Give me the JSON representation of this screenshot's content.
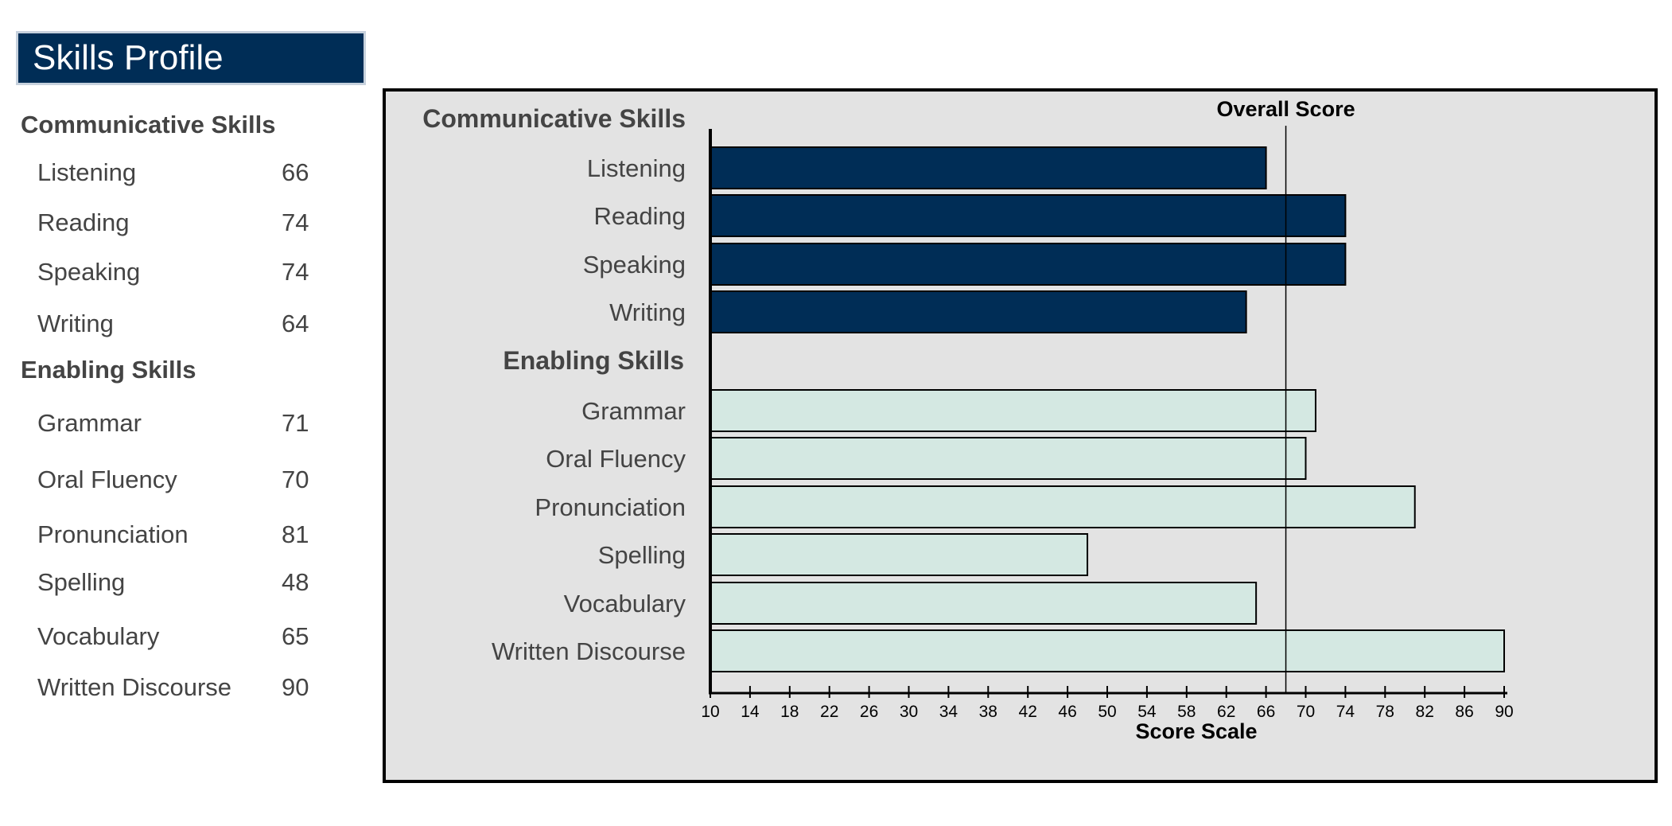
{
  "title": "Skills Profile",
  "sidebar": {
    "communicative_heading": "Communicative Skills",
    "communicative": [
      {
        "label": "Listening",
        "value": "66"
      },
      {
        "label": "Reading",
        "value": "74"
      },
      {
        "label": "Speaking",
        "value": "74"
      },
      {
        "label": "Writing",
        "value": "64"
      }
    ],
    "enabling_heading": "Enabling Skills",
    "enabling": [
      {
        "label": "Grammar",
        "value": "71"
      },
      {
        "label": "Oral Fluency",
        "value": "70"
      },
      {
        "label": "Pronunciation",
        "value": "81"
      },
      {
        "label": "Spelling",
        "value": "48"
      },
      {
        "label": "Vocabulary",
        "value": "65"
      },
      {
        "label": "Written Discourse",
        "value": "90"
      }
    ]
  },
  "chart_data": {
    "type": "bar",
    "orientation": "horizontal",
    "xlabel": "Score Scale",
    "xlim": [
      10,
      90
    ],
    "xticks": [
      10,
      14,
      18,
      22,
      26,
      30,
      34,
      38,
      42,
      46,
      50,
      54,
      58,
      62,
      66,
      70,
      74,
      78,
      82,
      86,
      90
    ],
    "reference_line": {
      "label": "Overall Score",
      "value": 68
    },
    "groups": [
      {
        "name": "Communicative Skills",
        "color": "#002d56",
        "categories": [
          "Listening",
          "Reading",
          "Speaking",
          "Writing"
        ],
        "values": [
          66,
          74,
          74,
          64
        ]
      },
      {
        "name": "Enabling Skills",
        "color": "#d4e8e2",
        "categories": [
          "Grammar",
          "Oral Fluency",
          "Pronunciation",
          "Spelling",
          "Vocabulary",
          "Written Discourse"
        ],
        "values": [
          71,
          70,
          81,
          48,
          65,
          90
        ]
      }
    ],
    "background": "#e3e3e3",
    "grid": false
  }
}
